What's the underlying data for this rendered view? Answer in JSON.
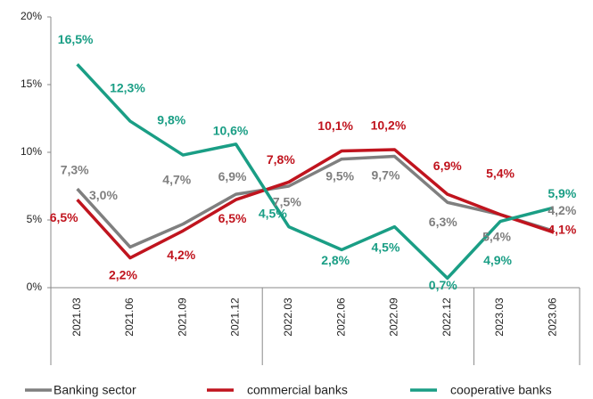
{
  "chart_data": {
    "type": "line",
    "categories": [
      "2021.03",
      "2021.06",
      "2021.09",
      "2021.12",
      "2022.03",
      "2022.06",
      "2022.09",
      "2022.12",
      "2023.03",
      "2023.06"
    ],
    "series": [
      {
        "name": "Banking sector",
        "color": "#7f7f7f",
        "values": [
          7.3,
          3.0,
          4.7,
          6.9,
          7.5,
          9.5,
          9.7,
          6.3,
          5.4,
          4.2
        ],
        "value_labels": [
          "7,3%",
          "3,0%",
          "4,7%",
          "6,9%",
          "7,5%",
          "9,5%",
          "9,7%",
          "6,3%",
          "5,4%",
          "4,2%"
        ]
      },
      {
        "name": "commercial banks",
        "color": "#c0141e",
        "values": [
          6.5,
          2.2,
          4.2,
          6.5,
          7.8,
          10.1,
          10.2,
          6.9,
          5.4,
          4.1
        ],
        "value_labels": [
          "6,5%",
          "2,2%",
          "4,2%",
          "6,5%",
          "7,8%",
          "10,1%",
          "10,2%",
          "6,9%",
          "5,4%",
          "4,1%"
        ]
      },
      {
        "name": "cooperative banks",
        "color": "#1a9e85",
        "values": [
          16.5,
          12.3,
          9.8,
          10.6,
          4.5,
          2.8,
          4.5,
          0.7,
          4.9,
          5.9
        ],
        "value_labels": [
          "16,5%",
          "12,3%",
          "9,8%",
          "10,6%",
          "4,5%",
          "2,8%",
          "4,5%",
          "0,7%",
          "4,9%",
          "5,9%"
        ]
      }
    ],
    "ylim": [
      0,
      20
    ],
    "yticks": [
      {
        "value": 0,
        "label": "0%"
      },
      {
        "value": 5,
        "label": "5%"
      },
      {
        "value": 10,
        "label": "10%"
      },
      {
        "value": 15,
        "label": "15%"
      },
      {
        "value": 20,
        "label": "20%"
      }
    ],
    "grid": false,
    "legend": "bottom"
  }
}
